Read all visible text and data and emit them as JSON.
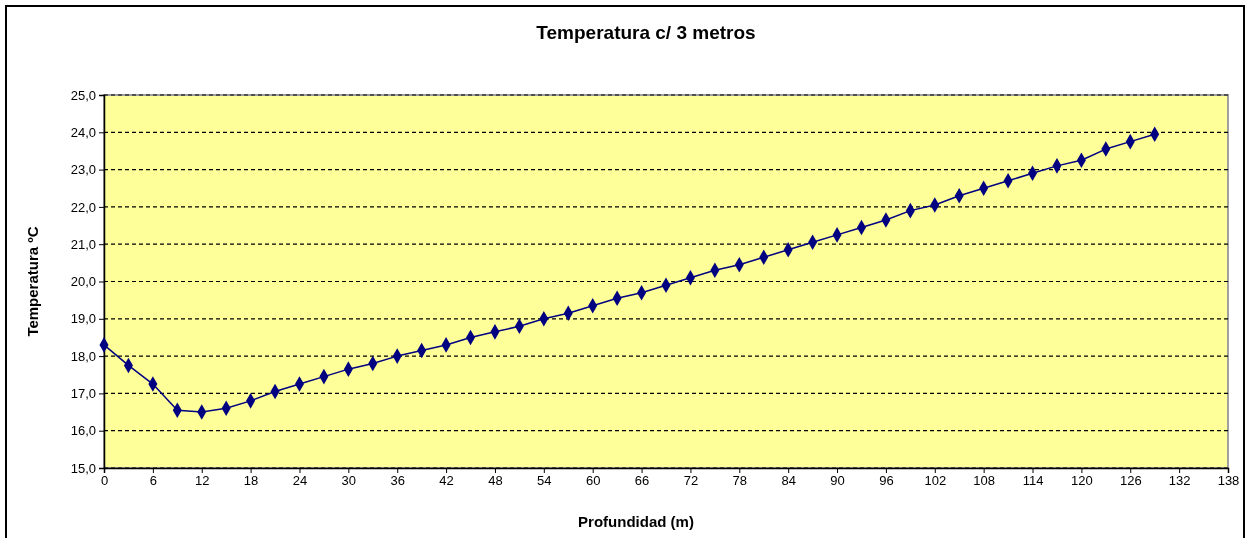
{
  "chart_data": {
    "type": "line",
    "title": "Temperatura c/ 3 metros",
    "xlabel": "Profundidad (m)",
    "ylabel": "Temperatura ºC",
    "x": [
      0,
      3,
      6,
      9,
      12,
      15,
      18,
      21,
      24,
      27,
      30,
      33,
      36,
      39,
      42,
      45,
      48,
      51,
      54,
      57,
      60,
      63,
      66,
      69,
      72,
      75,
      78,
      81,
      84,
      87,
      90,
      93,
      96,
      99,
      102,
      105,
      108,
      111,
      114,
      117,
      120,
      123,
      126,
      129
    ],
    "series": [
      {
        "color": "#000080",
        "values": [
          18.3,
          17.75,
          17.25,
          16.55,
          16.5,
          16.6,
          16.8,
          17.05,
          17.25,
          17.45,
          17.65,
          17.8,
          18.0,
          18.15,
          18.3,
          18.5,
          18.65,
          18.8,
          19.0,
          19.15,
          19.35,
          19.55,
          19.7,
          19.9,
          20.1,
          20.3,
          20.45,
          20.65,
          20.85,
          21.05,
          21.25,
          21.45,
          21.65,
          21.9,
          22.05,
          22.3,
          22.5,
          22.7,
          22.9,
          23.1,
          23.25,
          23.55,
          23.75,
          23.95
        ]
      }
    ],
    "xlim": [
      0,
      138
    ],
    "xticks": [
      0,
      6,
      12,
      18,
      24,
      30,
      36,
      42,
      48,
      54,
      60,
      66,
      72,
      78,
      84,
      90,
      96,
      102,
      108,
      114,
      120,
      126,
      132,
      138
    ],
    "ylim": [
      15,
      25
    ],
    "yticks": [
      {
        "value": 15,
        "label": "15,0"
      },
      {
        "value": 16,
        "label": "16,0"
      },
      {
        "value": 17,
        "label": "17,0"
      },
      {
        "value": 18,
        "label": "18,0"
      },
      {
        "value": 19,
        "label": "19,0"
      },
      {
        "value": 20,
        "label": "20,0"
      },
      {
        "value": 21,
        "label": "21,0"
      },
      {
        "value": 22,
        "label": "22,0"
      },
      {
        "value": 23,
        "label": "23,0"
      },
      {
        "value": 24,
        "label": "24,0"
      },
      {
        "value": 25,
        "label": "25,0"
      }
    ],
    "grid": "y",
    "marker": "diamond",
    "line_style": "solid"
  }
}
